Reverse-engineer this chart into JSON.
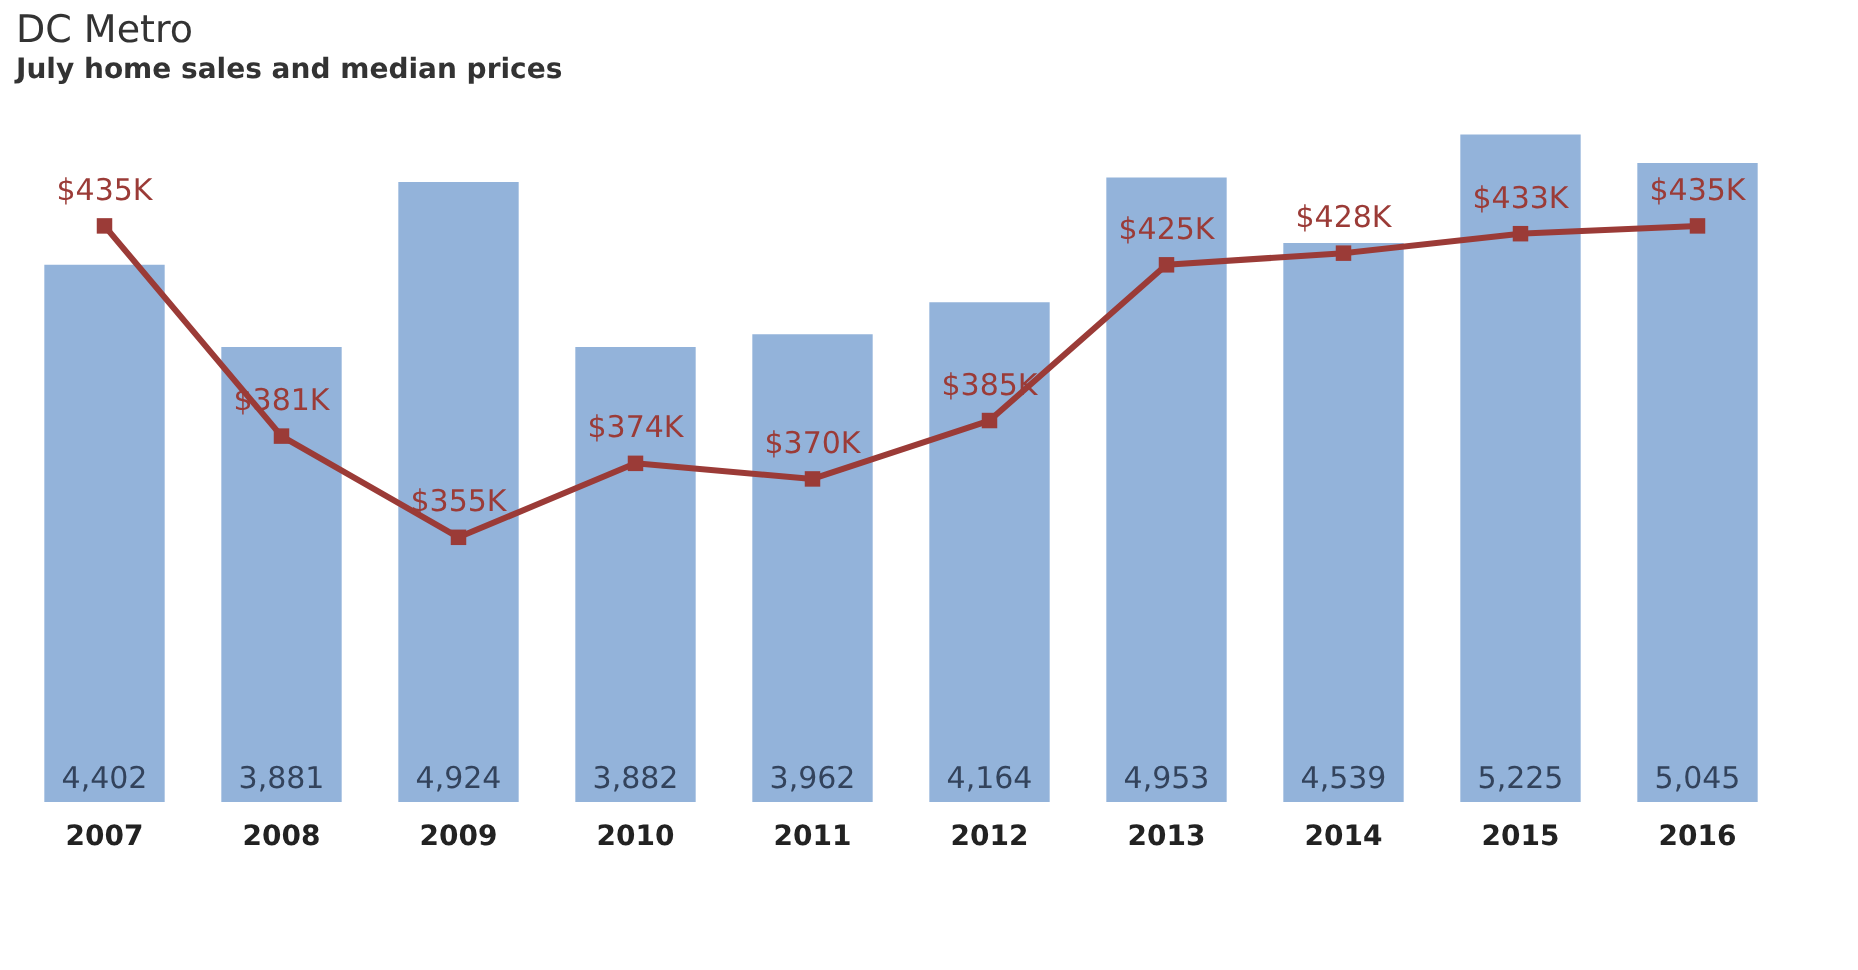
{
  "chart_data": {
    "type": "bar",
    "title": "DC Metro",
    "subtitle": "July home sales and median prices",
    "categories": [
      "2007",
      "2008",
      "2009",
      "2010",
      "2011",
      "2012",
      "2013",
      "2014",
      "2015",
      "2016"
    ],
    "series": [
      {
        "color": "#93b3da",
        "values": [
          4402,
          3881,
          4924,
          3882,
          3962,
          4164,
          4953,
          4539,
          5225,
          5045
        ],
        "value_labels": [
          "4,402",
          "3,881",
          "4,924",
          "3,882",
          "3,962",
          "4,164",
          "4,953",
          "4,539",
          "5,225",
          "5,045"
        ]
      },
      {
        "type": "line",
        "axis": "y2",
        "color": "#9b3b37",
        "marker": "square",
        "values": [
          435,
          381,
          355,
          374,
          370,
          385,
          425,
          428,
          433,
          435
        ],
        "value_labels": [
          "$435K",
          "$381K",
          "$355K",
          "$374K",
          "$370K",
          "$385K",
          "$425K",
          "$428K",
          "$433K",
          "$435K"
        ]
      }
    ],
    "tick_labels": "x",
    "grid": false
  }
}
